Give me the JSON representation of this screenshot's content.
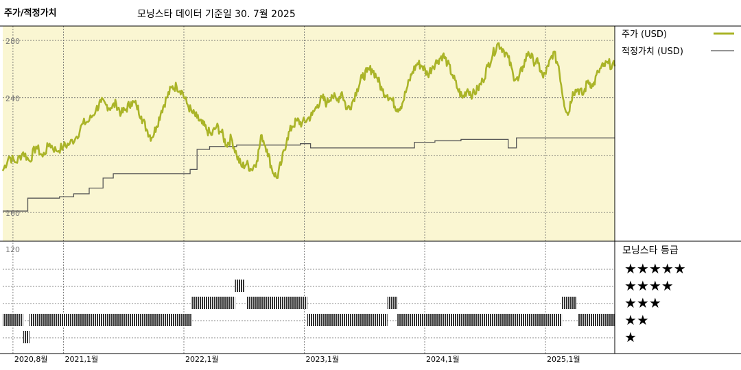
{
  "header": {
    "title": "주가/적정가치",
    "subtitle": "모닝스타 데이터 기준일 30. 7월 2025"
  },
  "colors": {
    "plot_bg": "#faf6d2",
    "price_line": "#aab428",
    "fair_value_line": "#555555",
    "rating_bar": "#333333",
    "grid": "#666666"
  },
  "chart_data": [
    {
      "type": "line",
      "title": "주가/적정가치",
      "ylim": [
        140,
        290
      ],
      "y_ticks": [
        160,
        200,
        240,
        280
      ],
      "y_tick_labels": [
        "160",
        "",
        "240",
        "280"
      ],
      "x_range": [
        "2020-07-01",
        "2025-07-30"
      ],
      "x_ticks": [
        "2020-08",
        "2021-01",
        "2022-01",
        "2023-01",
        "2024-01",
        "2025-01"
      ],
      "x_tick_labels": [
        "2020,8월",
        "2021,1월",
        "2022,1월",
        "2023,1월",
        "2024,1월",
        "2025,1월"
      ],
      "legend_position": "right",
      "grid": true,
      "series": [
        {
          "name": "주가 (USD)",
          "style": "thick",
          "points": [
            [
              "2020-07-01",
              189
            ],
            [
              "2020-07-20",
              199
            ],
            [
              "2020-08-10",
              195
            ],
            [
              "2020-09-01",
              202
            ],
            [
              "2020-09-20",
              196
            ],
            [
              "2020-10-10",
              206
            ],
            [
              "2020-10-30",
              199
            ],
            [
              "2020-11-20",
              208
            ],
            [
              "2020-12-10",
              203
            ],
            [
              "2021-01-01",
              206
            ],
            [
              "2021-01-20",
              208
            ],
            [
              "2021-02-10",
              213
            ],
            [
              "2021-03-01",
              222
            ],
            [
              "2021-03-20",
              224
            ],
            [
              "2021-04-10",
              232
            ],
            [
              "2021-04-25",
              237
            ],
            [
              "2021-05-10",
              235
            ],
            [
              "2021-05-25",
              233
            ],
            [
              "2021-06-10",
              236
            ],
            [
              "2021-06-25",
              229
            ],
            [
              "2021-07-10",
              232
            ],
            [
              "2021-07-25",
              237
            ],
            [
              "2021-08-10",
              235
            ],
            [
              "2021-08-25",
              227
            ],
            [
              "2021-09-10",
              218
            ],
            [
              "2021-09-25",
              212
            ],
            [
              "2021-10-10",
              220
            ],
            [
              "2021-10-25",
              231
            ],
            [
              "2021-11-10",
              240
            ],
            [
              "2021-11-25",
              247
            ],
            [
              "2021-12-10",
              248
            ],
            [
              "2021-12-25",
              245
            ],
            [
              "2022-01-10",
              236
            ],
            [
              "2022-01-25",
              230
            ],
            [
              "2022-02-10",
              226
            ],
            [
              "2022-02-25",
              222
            ],
            [
              "2022-03-10",
              218
            ],
            [
              "2022-03-25",
              214
            ],
            [
              "2022-04-10",
              220
            ],
            [
              "2022-04-25",
              216
            ],
            [
              "2022-05-10",
              207
            ],
            [
              "2022-05-25",
              212
            ],
            [
              "2022-06-10",
              200
            ],
            [
              "2022-06-25",
              192
            ],
            [
              "2022-07-10",
              194
            ],
            [
              "2022-07-25",
              190
            ],
            [
              "2022-08-10",
              196
            ],
            [
              "2022-08-25",
              214
            ],
            [
              "2022-09-10",
              204
            ],
            [
              "2022-09-25",
              190
            ],
            [
              "2022-10-10",
              184
            ],
            [
              "2022-10-25",
              196
            ],
            [
              "2022-11-10",
              212
            ],
            [
              "2022-11-25",
              220
            ],
            [
              "2022-12-10",
              224
            ],
            [
              "2022-12-25",
              222
            ],
            [
              "2023-01-10",
              225
            ],
            [
              "2023-01-25",
              228
            ],
            [
              "2023-02-10",
              235
            ],
            [
              "2023-02-25",
              240
            ],
            [
              "2023-03-10",
              236
            ],
            [
              "2023-03-25",
              242
            ],
            [
              "2023-04-10",
              238
            ],
            [
              "2023-04-25",
              244
            ],
            [
              "2023-05-10",
              232
            ],
            [
              "2023-05-25",
              236
            ],
            [
              "2023-06-10",
              246
            ],
            [
              "2023-06-25",
              254
            ],
            [
              "2023-07-10",
              258
            ],
            [
              "2023-07-25",
              260
            ],
            [
              "2023-08-10",
              254
            ],
            [
              "2023-08-25",
              245
            ],
            [
              "2023-09-10",
              242
            ],
            [
              "2023-09-25",
              238
            ],
            [
              "2023-10-10",
              232
            ],
            [
              "2023-10-25",
              236
            ],
            [
              "2023-11-10",
              248
            ],
            [
              "2023-11-25",
              258
            ],
            [
              "2023-12-10",
              264
            ],
            [
              "2023-12-25",
              262
            ],
            [
              "2024-01-10",
              256
            ],
            [
              "2024-01-25",
              262
            ],
            [
              "2024-02-10",
              266
            ],
            [
              "2024-02-25",
              270
            ],
            [
              "2024-03-10",
              264
            ],
            [
              "2024-03-25",
              256
            ],
            [
              "2024-04-10",
              246
            ],
            [
              "2024-04-25",
              240
            ],
            [
              "2024-05-10",
              246
            ],
            [
              "2024-05-25",
              242
            ],
            [
              "2024-06-10",
              246
            ],
            [
              "2024-06-25",
              252
            ],
            [
              "2024-07-10",
              262
            ],
            [
              "2024-07-25",
              270
            ],
            [
              "2024-08-10",
              278
            ],
            [
              "2024-08-25",
              274
            ],
            [
              "2024-09-10",
              268
            ],
            [
              "2024-09-25",
              256
            ],
            [
              "2024-10-10",
              252
            ],
            [
              "2024-10-25",
              262
            ],
            [
              "2024-11-10",
              272
            ],
            [
              "2024-11-25",
              266
            ],
            [
              "2024-12-10",
              264
            ],
            [
              "2024-12-25",
              254
            ],
            [
              "2025-01-10",
              262
            ],
            [
              "2025-01-25",
              272
            ],
            [
              "2025-02-10",
              262
            ],
            [
              "2025-02-25",
              238
            ],
            [
              "2025-03-10",
              228
            ],
            [
              "2025-03-25",
              244
            ],
            [
              "2025-04-10",
              246
            ],
            [
              "2025-04-25",
              242
            ],
            [
              "2025-05-10",
              252
            ],
            [
              "2025-05-25",
              248
            ],
            [
              "2025-06-10",
              258
            ],
            [
              "2025-06-25",
              262
            ],
            [
              "2025-07-10",
              264
            ],
            [
              "2025-07-30",
              262
            ]
          ]
        },
        {
          "name": "적정가치 (USD)",
          "style": "thin-step",
          "steps": [
            [
              "2020-07-01",
              161
            ],
            [
              "2020-09-15",
              170
            ],
            [
              "2020-12-20",
              171
            ],
            [
              "2021-02-01",
              173
            ],
            [
              "2021-03-20",
              177
            ],
            [
              "2021-05-01",
              184
            ],
            [
              "2021-06-01",
              187
            ],
            [
              "2022-01-20",
              190
            ],
            [
              "2022-02-10",
              204
            ],
            [
              "2022-03-20",
              206
            ],
            [
              "2022-06-10",
              207
            ],
            [
              "2022-12-20",
              208
            ],
            [
              "2023-01-20",
              205
            ],
            [
              "2023-12-01",
              209
            ],
            [
              "2024-02-01",
              210
            ],
            [
              "2024-04-20",
              211
            ],
            [
              "2024-09-10",
              205
            ],
            [
              "2024-10-05",
              212
            ],
            [
              "2025-07-30",
              212
            ]
          ]
        }
      ]
    },
    {
      "type": "bar",
      "title": "모닝스타 등급",
      "y_tick_label": "120",
      "rating_labels": [
        "★★★★★",
        "★★★★",
        "★★★",
        "★★",
        "★"
      ],
      "periods": [
        {
          "start": "2020-07-01",
          "end": "2020-09-01",
          "stars": 2
        },
        {
          "start": "2020-09-01",
          "end": "2020-09-20",
          "stars": 1
        },
        {
          "start": "2020-09-20",
          "end": "2022-01-25",
          "stars": 2
        },
        {
          "start": "2022-01-25",
          "end": "2022-06-05",
          "stars": 3
        },
        {
          "start": "2022-06-05",
          "end": "2022-07-05",
          "stars": 4
        },
        {
          "start": "2022-07-10",
          "end": "2023-01-10",
          "stars": 3
        },
        {
          "start": "2023-01-10",
          "end": "2023-09-10",
          "stars": 2
        },
        {
          "start": "2023-09-10",
          "end": "2023-10-10",
          "stars": 3
        },
        {
          "start": "2023-10-10",
          "end": "2025-02-20",
          "stars": 2
        },
        {
          "start": "2025-02-20",
          "end": "2025-04-05",
          "stars": 3
        },
        {
          "start": "2025-04-10",
          "end": "2025-07-30",
          "stars": 2
        }
      ]
    }
  ]
}
